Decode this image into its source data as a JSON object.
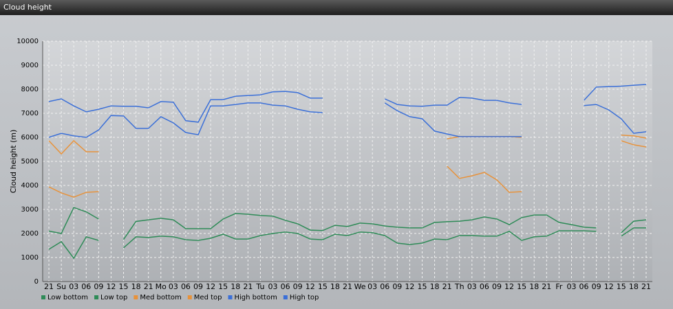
{
  "chart_data": {
    "type": "line",
    "title": "Cloud height",
    "y_label": "Cloud height (m)",
    "categories": [
      "21",
      "Su",
      "03",
      "06",
      "09",
      "12",
      "15",
      "18",
      "21",
      "Mo",
      "03",
      "06",
      "09",
      "12",
      "15",
      "18",
      "21",
      "Tu",
      "03",
      "06",
      "09",
      "12",
      "15",
      "18",
      "21",
      "We",
      "03",
      "06",
      "09",
      "12",
      "15",
      "18",
      "21",
      "Th",
      "03",
      "06",
      "09",
      "12",
      "15",
      "18",
      "21",
      "Fr",
      "03",
      "06",
      "09",
      "12",
      "15",
      "18",
      "21"
    ],
    "ylim": [
      0,
      10000
    ],
    "yticks": [
      0,
      1000,
      2000,
      3000,
      4000,
      5000,
      6000,
      7000,
      8000,
      9000,
      10000
    ],
    "grid": true,
    "legend": "bottom-left",
    "series": [
      {
        "name": "Low bottom",
        "color": "#2e8b57",
        "values": [
          1340,
          1660,
          970,
          1860,
          1710,
          null,
          1400,
          1860,
          1830,
          1890,
          1860,
          1740,
          1710,
          1800,
          1970,
          1770,
          1770,
          1910,
          2000,
          2060,
          2000,
          1770,
          1740,
          1970,
          1910,
          2060,
          2030,
          1910,
          1600,
          1540,
          1600,
          1770,
          1740,
          1910,
          1910,
          1890,
          1890,
          2090,
          1710,
          1860,
          1890,
          2110,
          2110,
          2110,
          2090,
          null,
          1890,
          2230,
          2230
        ]
      },
      {
        "name": "Low top",
        "color": "#2e8b57",
        "values": [
          2100,
          2000,
          3080,
          2900,
          2600,
          null,
          1750,
          2500,
          2570,
          2630,
          2570,
          2200,
          2200,
          2200,
          2600,
          2830,
          2800,
          2750,
          2720,
          2550,
          2400,
          2140,
          2120,
          2340,
          2290,
          2430,
          2400,
          2310,
          2260,
          2230,
          2230,
          2460,
          2490,
          2510,
          2570,
          2690,
          2600,
          2370,
          2660,
          2770,
          2770,
          2460,
          2370,
          2260,
          2230,
          null,
          2030,
          2510,
          2570
        ]
      },
      {
        "name": "Med bottom",
        "color": "#e8923a",
        "values": [
          3940,
          3690,
          3510,
          3710,
          3740,
          null,
          null,
          null,
          null,
          null,
          null,
          null,
          null,
          null,
          null,
          null,
          null,
          null,
          null,
          null,
          null,
          null,
          null,
          null,
          null,
          null,
          null,
          null,
          null,
          null,
          null,
          null,
          4800,
          4290,
          4400,
          4540,
          4230,
          3710,
          3740,
          null,
          null,
          null,
          null,
          null,
          null,
          null,
          5860,
          5690,
          5600
        ]
      },
      {
        "name": "Med top",
        "color": "#e8923a",
        "values": [
          5860,
          5310,
          5860,
          5400,
          5400,
          null,
          null,
          null,
          null,
          null,
          null,
          null,
          null,
          null,
          null,
          null,
          null,
          null,
          null,
          null,
          null,
          null,
          null,
          null,
          null,
          null,
          null,
          null,
          null,
          null,
          null,
          null,
          5940,
          6030,
          6030,
          6030,
          6030,
          6030,
          6000,
          null,
          null,
          null,
          null,
          null,
          null,
          null,
          6090,
          6060,
          5970
        ]
      },
      {
        "name": "High bottom",
        "color": "#3a6fd8",
        "values": [
          6000,
          6170,
          6060,
          6000,
          6310,
          6910,
          6890,
          6370,
          6370,
          6860,
          6600,
          6200,
          6110,
          7310,
          7310,
          7370,
          7430,
          7430,
          7340,
          7310,
          7170,
          7060,
          7030,
          null,
          null,
          null,
          null,
          7430,
          7110,
          6860,
          6770,
          6260,
          6140,
          6030,
          6030,
          6030,
          6030,
          6030,
          6030,
          null,
          null,
          null,
          null,
          7320,
          7370,
          7140,
          6770,
          6170,
          6230
        ]
      },
      {
        "name": "High top",
        "color": "#3a6fd8",
        "values": [
          7490,
          7600,
          7310,
          7060,
          7170,
          7310,
          7290,
          7290,
          7230,
          7490,
          7460,
          6690,
          6630,
          7570,
          7570,
          7710,
          7740,
          7770,
          7890,
          7910,
          7860,
          7630,
          7630,
          null,
          null,
          null,
          null,
          7600,
          7370,
          7310,
          7290,
          7340,
          7340,
          7660,
          7630,
          7540,
          7540,
          7430,
          7370,
          null,
          null,
          null,
          null,
          7540,
          8090,
          8110,
          8130,
          8170,
          8200
        ]
      }
    ]
  }
}
